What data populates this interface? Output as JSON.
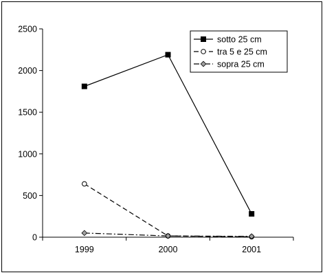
{
  "chart_data": {
    "type": "line",
    "title": "",
    "xlabel": "",
    "ylabel": "",
    "categories": [
      "1999",
      "2000",
      "2001"
    ],
    "ylim": [
      0,
      2500
    ],
    "yticks": [
      0,
      500,
      1000,
      1500,
      2000,
      2500
    ],
    "grid": false,
    "legend_position": "top-right",
    "series": [
      {
        "name": "sotto 25 cm",
        "values": [
          1810,
          2190,
          280
        ],
        "marker": "filled-square",
        "line_style": "solid",
        "color": "#000000"
      },
      {
        "name": "tra 5 e 25 cm",
        "values": [
          640,
          15,
          5
        ],
        "marker": "open-circle",
        "line_style": "dashed",
        "color": "#000000"
      },
      {
        "name": "sopra 25 cm",
        "values": [
          50,
          15,
          10
        ],
        "marker": "grey-diamond",
        "line_style": "dash-dot",
        "color": "#000000",
        "marker_color": "#a0a0a0"
      }
    ]
  }
}
